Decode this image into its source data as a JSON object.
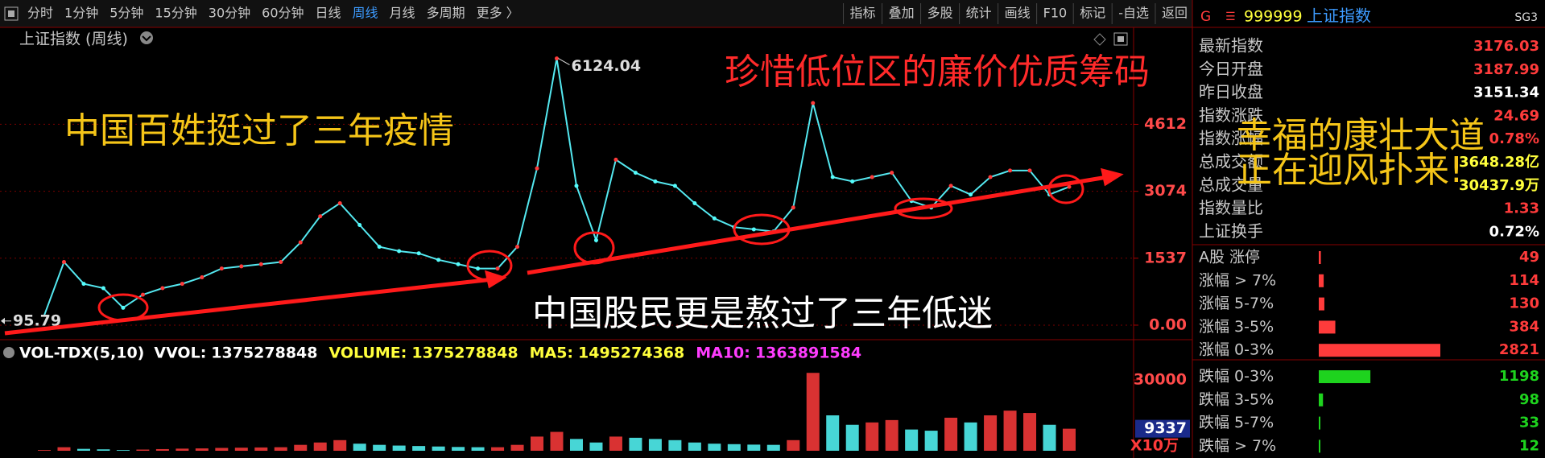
{
  "toolbar": {
    "tabs": [
      "分时",
      "1分钟",
      "5分钟",
      "15分钟",
      "30分钟",
      "60分钟",
      "日线",
      "周线",
      "月线",
      "多周期",
      "更多 〉"
    ],
    "active_tab": 7,
    "active_color": "#3d9bff",
    "buttons": [
      "指标",
      "叠加",
      "多股",
      "统计",
      "画线",
      "F10",
      "标记",
      "-自选",
      "返回"
    ]
  },
  "chart_data": [
    {
      "type": "line",
      "title": "上证指数 (周线)",
      "color": "#54e8f0",
      "up_color": "#ff3b3b",
      "down_color": "#54fcfc",
      "values": [
        226,
        1450,
        950,
        850,
        400,
        700,
        850,
        950,
        1100,
        1300,
        1350,
        1400,
        1450,
        1900,
        2500,
        2800,
        2300,
        1800,
        1700,
        1650,
        1500,
        1400,
        1300,
        1300,
        1800,
        3600,
        6124,
        3200,
        1950,
        3800,
        3500,
        3300,
        3200,
        2800,
        2450,
        2250,
        2200,
        2150,
        2700,
        5100,
        3400,
        3300,
        3400,
        3500,
        2850,
        2700,
        3200,
        3000,
        3400,
        3550,
        3550,
        3000,
        3176
      ],
      "ylim": [
        -250,
        6300
      ],
      "yticks": [
        4612,
        3074,
        1537,
        {
          "value": 0,
          "label": "0.00"
        }
      ],
      "grid": true,
      "max": 6124.04,
      "min": 95.79
    },
    {
      "type": "bar",
      "title": "VOL-TDX(5,10)",
      "unit": "X10万",
      "indicators": [
        {
          "label": "VVOL:",
          "value": 1375278848,
          "color": "#ffffff"
        },
        {
          "label": "VOLUME:",
          "value": 1375278848,
          "color": "#ffff3c"
        },
        {
          "label": "MA5:",
          "value": 1495274368,
          "color": "#ffff3c"
        },
        {
          "label": "MA10:",
          "value": 1363891584,
          "color": "#ff3cff"
        }
      ],
      "values": [
        300,
        1500,
        800,
        600,
        300,
        500,
        700,
        900,
        1000,
        1200,
        1300,
        1400,
        1500,
        2500,
        3500,
        4500,
        3000,
        2500,
        2200,
        2000,
        1800,
        1600,
        1500,
        1500,
        2500,
        6000,
        8000,
        5000,
        3500,
        6000,
        5500,
        5000,
        4500,
        3500,
        3000,
        2800,
        2600,
        2500,
        4500,
        33000,
        15000,
        11000,
        12000,
        13000,
        9000,
        8500,
        14000,
        12000,
        15000,
        17000,
        16000,
        11000,
        9337
      ],
      "ylim": [
        0,
        37000
      ],
      "yticks": [
        30000
      ]
    }
  ],
  "quote_panel": {
    "market": "G",
    "code": "999999",
    "name": "上证指数",
    "tag": "SG3",
    "rows": [
      {
        "label": "最新指数",
        "value": 3176.03,
        "color": "#ff3b3b"
      },
      {
        "label": "今日开盘",
        "value": 3187.99,
        "color": "#ff3b3b"
      },
      {
        "label": "昨日收盘",
        "value": 3151.34,
        "color": "#ffffff"
      },
      {
        "label": "指数涨跌",
        "value": 24.69,
        "color": "#ff3b3b"
      },
      {
        "label": "指数涨幅",
        "value": "0.78%",
        "color": "#ff3b3b"
      },
      {
        "label": "总成交额",
        "value": "3648.28亿",
        "color": "#ffff3c"
      },
      {
        "label": "总成交量",
        "value": "30437.9万",
        "color": "#ffff3c"
      },
      {
        "label": "指数量比",
        "value": 1.33,
        "color": "#ff3b3b"
      },
      {
        "label": "上证换手",
        "value": "0.72%",
        "color": "#ffffff"
      }
    ],
    "breadth": [
      {
        "label": "A股 涨停",
        "value": 49,
        "color": "#ff3b3b"
      },
      {
        "label": "涨幅 > 7%",
        "value": 114,
        "color": "#ff3b3b"
      },
      {
        "label": "涨幅 5-7%",
        "value": 130,
        "color": "#ff3b3b"
      },
      {
        "label": "涨幅 3-5%",
        "value": 384,
        "color": "#ff3b3b"
      },
      {
        "label": "涨幅 0-3%",
        "value": 2821,
        "color": "#ff3b3b"
      },
      {
        "label": "跌幅 0-3%",
        "value": 1198,
        "color": "#1ed31e"
      },
      {
        "label": "跌幅 3-5%",
        "value": 98,
        "color": "#1ed31e"
      },
      {
        "label": "跌幅 5-7%",
        "value": 33,
        "color": "#1ed31e"
      },
      {
        "label": "跌幅 > 7%",
        "value": 12,
        "color": "#1ed31e"
      }
    ]
  },
  "overlay": {
    "texts": [
      {
        "text": "中国百姓挺过了三年疫情",
        "color": "#f5c518"
      },
      {
        "text": "珍惜低位区的廉价优质筹码",
        "color": "#ff2a2a"
      },
      {
        "text": "中国股民更是熬过了三年低迷",
        "color": "#ffffff"
      },
      {
        "text": "幸福的康壮大道",
        "color": "#f5c518"
      },
      {
        "text": "正在迎风扑来!",
        "color": "#f5c518"
      }
    ]
  }
}
